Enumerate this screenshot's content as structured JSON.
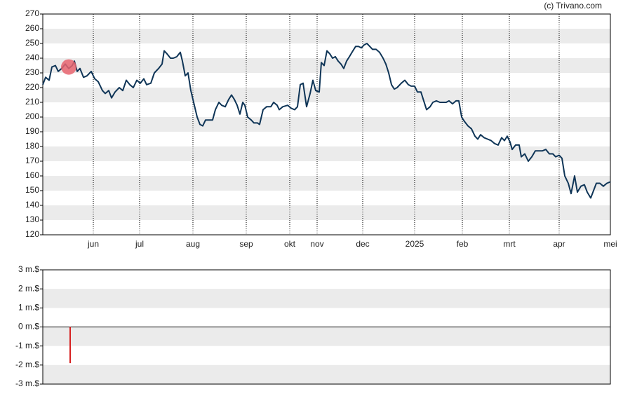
{
  "chart_data": [
    {
      "type": "line",
      "source": "(c) Trivano.com",
      "color": "#0f3557",
      "xlim": [
        0,
        809
      ],
      "xticks": [
        {
          "value": 72,
          "label": "jun"
        },
        {
          "value": 138,
          "label": "jul"
        },
        {
          "value": 214,
          "label": "aug"
        },
        {
          "value": 290,
          "label": "sep"
        },
        {
          "value": 352,
          "label": "okt"
        },
        {
          "value": 391,
          "label": "nov"
        },
        {
          "value": 456,
          "label": "dec"
        },
        {
          "value": 530,
          "label": "2025"
        },
        {
          "value": 598,
          "label": "feb"
        },
        {
          "value": 665,
          "label": "mrt"
        },
        {
          "value": 736,
          "label": "apr"
        },
        {
          "value": 809,
          "label": "mei"
        }
      ],
      "ylim": [
        120,
        270
      ],
      "yticks": [
        120,
        130,
        140,
        150,
        160,
        170,
        180,
        190,
        200,
        210,
        220,
        230,
        240,
        250,
        260,
        270
      ],
      "x": [
        0,
        4,
        9,
        13,
        18,
        22,
        27,
        32,
        37,
        42,
        45,
        49,
        53,
        58,
        63,
        69,
        74,
        79,
        85,
        89,
        94,
        98,
        103,
        109,
        114,
        119,
        124,
        129,
        134,
        139,
        144,
        148,
        154,
        159,
        165,
        170,
        173,
        177,
        182,
        186,
        191,
        196,
        199,
        203,
        207,
        211,
        215,
        220,
        224,
        228,
        232,
        237,
        242,
        246,
        251,
        255,
        260,
        265,
        269,
        273,
        277,
        281,
        285,
        288,
        292,
        297,
        301,
        306,
        309,
        314,
        319,
        325,
        329,
        334,
        337,
        342,
        349,
        354,
        359,
        363,
        367,
        371,
        376,
        381,
        385,
        389,
        394,
        397,
        401,
        405,
        409,
        413,
        417,
        421,
        425,
        429,
        433,
        437,
        442,
        446,
        450,
        454,
        458,
        462,
        466,
        470,
        475,
        480,
        485,
        489,
        493,
        497,
        501,
        505,
        511,
        516,
        521,
        525,
        530,
        534,
        539,
        543,
        547,
        552,
        556,
        561,
        566,
        570,
        575,
        579,
        584,
        589,
        593,
        597,
        601,
        606,
        611,
        616,
        620,
        624,
        629,
        634,
        639,
        644,
        649,
        654,
        658,
        662,
        666,
        669,
        674,
        679,
        682,
        687,
        692,
        697,
        702,
        707,
        712,
        717,
        722,
        727,
        731,
        736,
        740,
        744,
        749,
        753,
        758,
        762,
        767,
        772,
        776,
        781,
        785,
        789,
        794,
        799,
        804,
        809
      ],
      "values": [
        222,
        227,
        225,
        234,
        235,
        231,
        233,
        236,
        233,
        235,
        238,
        231,
        233,
        227,
        228,
        231,
        226,
        224,
        218,
        216,
        218,
        213,
        217,
        220,
        218,
        225,
        222,
        220,
        225,
        223,
        226,
        222,
        223,
        230,
        233,
        236,
        245,
        243,
        240,
        240,
        241,
        244,
        238,
        228,
        230,
        218,
        210,
        200,
        195,
        194,
        198,
        198,
        198,
        205,
        210,
        208,
        207,
        212,
        215,
        212,
        208,
        202,
        210,
        208,
        200,
        198,
        196,
        196,
        195,
        205,
        207,
        207,
        210,
        208,
        205,
        207,
        208,
        206,
        205,
        207,
        222,
        223,
        207,
        216,
        225,
        218,
        217,
        237,
        235,
        245,
        243,
        240,
        241,
        238,
        236,
        233,
        238,
        241,
        245,
        248,
        248,
        247,
        249,
        250,
        248,
        246,
        246,
        244,
        240,
        236,
        230,
        222,
        219,
        220,
        223,
        225,
        222,
        221,
        221,
        217,
        217,
        211,
        205,
        207,
        210,
        211,
        210,
        210,
        210,
        211,
        209,
        211,
        211,
        200,
        197,
        194,
        192,
        187,
        185,
        188,
        186,
        185,
        184,
        182,
        181,
        186,
        184,
        187,
        183,
        178,
        181,
        181,
        173,
        175,
        170,
        173,
        177,
        177,
        177,
        178,
        175,
        175,
        173,
        174,
        172,
        160,
        155,
        148,
        160,
        149,
        153,
        154,
        149,
        145,
        150,
        155,
        155,
        153,
        155,
        156
      ],
      "marker": {
        "x": 37,
        "value": 234,
        "color": "#e8646e"
      }
    },
    {
      "type": "bar",
      "color": "#d62020",
      "xlim": [
        0,
        809
      ],
      "ylim": [
        -3,
        3
      ],
      "yticks": [
        {
          "value": -3,
          "label": "-3 m.$"
        },
        {
          "value": -2,
          "label": "-2 m.$"
        },
        {
          "value": -1,
          "label": "-1 m.$"
        },
        {
          "value": 0,
          "label": "0 m.$"
        },
        {
          "value": 1,
          "label": "1 m.$"
        },
        {
          "value": 2,
          "label": "2 m.$"
        },
        {
          "value": 3,
          "label": "3 m.$"
        }
      ],
      "x": [
        39
      ],
      "values": [
        -1.9
      ]
    }
  ]
}
